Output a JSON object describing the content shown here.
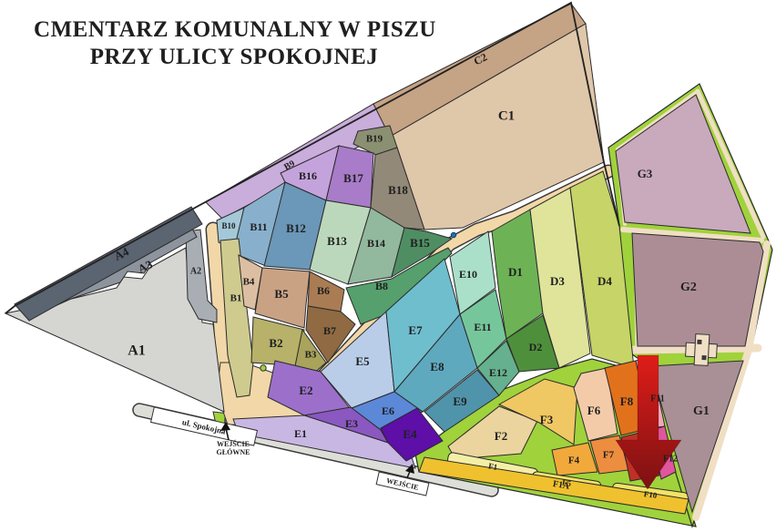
{
  "title": {
    "line1": "CMENTARZ KOMUNALNY W PISZU",
    "line2": "PRZY ULICY SPOKOJNEJ",
    "color": "#C23A0C"
  },
  "map": {
    "street_label": "ul. Spokojna",
    "main_entrance_line1": "WEJŚCIE",
    "main_entrance_line2": "GŁÓWNE",
    "side_entrance_label": "WEJŚCIE",
    "palette": {
      "path_tan": "#F2D7A8",
      "path_beige": "#F0DFC4",
      "road_green": "#A0D23C",
      "road_gray": "#DEDED9",
      "outline": "#2b2b2b",
      "arrow_top": "#DF1D18",
      "arrow_bottom": "#7C1113",
      "water_dot": "#1F6FB5",
      "entrance_dot": "#A0D23C"
    },
    "sections": [
      {
        "id": "A1",
        "label": "A1",
        "color": "#D5D6D2"
      },
      {
        "id": "A2",
        "label": "A2",
        "color": "#A9AEB4"
      },
      {
        "id": "A3",
        "label": "A3",
        "color": "#8D949D"
      },
      {
        "id": "A4",
        "label": "A4",
        "color": "#5B6471"
      },
      {
        "id": "B9",
        "label": "B9",
        "color": "#C9ADDB"
      },
      {
        "id": "C2",
        "label": "C2",
        "color": "#C5A385"
      },
      {
        "id": "C1",
        "label": "C1",
        "color": "#DFC7A9"
      },
      {
        "id": "B19",
        "label": "B19",
        "color": "#8C9072"
      },
      {
        "id": "B16",
        "label": "B16",
        "color": "#C4A3DC"
      },
      {
        "id": "B17",
        "label": "B17",
        "color": "#A87CC8"
      },
      {
        "id": "B18",
        "label": "B18",
        "color": "#938978"
      },
      {
        "id": "B10",
        "label": "B10",
        "color": "#A4C8D8"
      },
      {
        "id": "B11",
        "label": "B11",
        "color": "#88B0CC"
      },
      {
        "id": "B12",
        "label": "B12",
        "color": "#6B97B8"
      },
      {
        "id": "B13",
        "label": "B13",
        "color": "#BCD8BC"
      },
      {
        "id": "B14",
        "label": "B14",
        "color": "#92B89E"
      },
      {
        "id": "B15",
        "label": "B15",
        "color": "#4F8E63"
      },
      {
        "id": "B8",
        "label": "B8",
        "color": "#55A06C"
      },
      {
        "id": "B1",
        "label": "B1",
        "color": "#CFCB8F"
      },
      {
        "id": "B4",
        "label": "B4",
        "color": "#DCBFA2"
      },
      {
        "id": "B5",
        "label": "B5",
        "color": "#C9A284"
      },
      {
        "id": "B6",
        "label": "B6",
        "color": "#A97C54"
      },
      {
        "id": "B7",
        "label": "B7",
        "color": "#8F6A42"
      },
      {
        "id": "B2",
        "label": "B2",
        "color": "#B7B169"
      },
      {
        "id": "B3",
        "label": "B3",
        "color": "#A9A35B"
      },
      {
        "id": "E2",
        "label": "E2",
        "color": "#9C70CA"
      },
      {
        "id": "E5",
        "label": "E5",
        "color": "#B9CDE9"
      },
      {
        "id": "E7",
        "label": "E7",
        "color": "#6FBECE"
      },
      {
        "id": "E10",
        "label": "E10",
        "color": "#AAE0CA"
      },
      {
        "id": "E11",
        "label": "E11",
        "color": "#76C69C"
      },
      {
        "id": "E8",
        "label": "E8",
        "color": "#5FA9BE"
      },
      {
        "id": "E6",
        "label": "E6",
        "color": "#5C88D8"
      },
      {
        "id": "E3",
        "label": "E3",
        "color": "#8A58C0"
      },
      {
        "id": "E1",
        "label": "E1",
        "color": "#C8B7E3"
      },
      {
        "id": "E4",
        "label": "E4",
        "color": "#5D0FA8"
      },
      {
        "id": "E9",
        "label": "E9",
        "color": "#4F94AA"
      },
      {
        "id": "E12",
        "label": "E12",
        "color": "#65B08E"
      },
      {
        "id": "D1",
        "label": "D1",
        "color": "#6DB355"
      },
      {
        "id": "D3",
        "label": "D3",
        "color": "#DFE49A"
      },
      {
        "id": "D4",
        "label": "D4",
        "color": "#C6D468"
      },
      {
        "id": "D2",
        "label": "D2",
        "color": "#4E8F3C"
      },
      {
        "id": "F2",
        "label": "F2",
        "color": "#EBD49E"
      },
      {
        "id": "F3",
        "label": "F3",
        "color": "#EFC763"
      },
      {
        "id": "F6",
        "label": "F6",
        "color": "#F4CBA9"
      },
      {
        "id": "F8",
        "label": "F8",
        "color": "#E2711C"
      },
      {
        "id": "F11",
        "label": "F11",
        "color": "#F2A8BC"
      },
      {
        "id": "F4",
        "label": "F4",
        "color": "#F2A93B"
      },
      {
        "id": "F7",
        "label": "F7",
        "color": "#ED8D3F"
      },
      {
        "id": "F9",
        "label": "",
        "color": "#C03026"
      },
      {
        "id": "F12",
        "label": "F12",
        "color": "#E0559E"
      },
      {
        "id": "F1",
        "label": "F1",
        "color": "#F4EFA6"
      },
      {
        "id": "F5",
        "label": "F5",
        "color": "#F2E365"
      },
      {
        "id": "F10",
        "label": "F10",
        "color": "#F2E365"
      },
      {
        "id": "F1A",
        "label": "F1A",
        "color": "#EFC12F"
      },
      {
        "id": "G3",
        "label": "G3",
        "color": "#C9A9BC"
      },
      {
        "id": "G2",
        "label": "G2",
        "color": "#AC8D95"
      },
      {
        "id": "G1",
        "label": "G1",
        "color": "#A98F96"
      }
    ]
  }
}
